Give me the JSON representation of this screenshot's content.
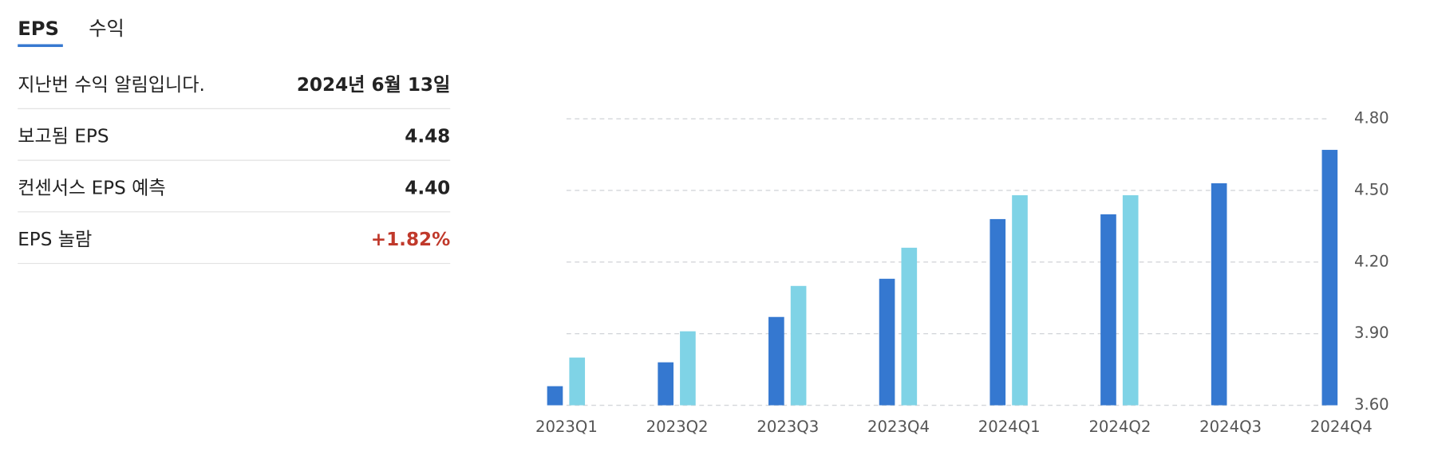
{
  "tabs": [
    "EPS",
    "수익"
  ],
  "info": {
    "rows": [
      {
        "label": "지난번 수익 알림입니다.",
        "value": "2024년 6월 13일"
      },
      {
        "label": "보고됨 EPS",
        "value": "4.48"
      },
      {
        "label": "컨센서스 EPS 예측",
        "value": "4.40"
      },
      {
        "label": "EPS 놀람",
        "value": "+1.82%"
      }
    ]
  },
  "chart_data": {
    "type": "bar",
    "categories": [
      "2023Q1",
      "2023Q2",
      "2023Q3",
      "2023Q4",
      "2024Q1",
      "2024Q2",
      "2024Q3",
      "2024Q4"
    ],
    "series": [
      {
        "color": "#3578d0",
        "values": [
          3.68,
          3.78,
          3.97,
          4.13,
          4.38,
          4.4,
          4.53,
          4.67
        ]
      },
      {
        "color": "#7fd3e6",
        "values": [
          3.8,
          3.91,
          4.1,
          4.26,
          4.48,
          4.48,
          null,
          null
        ]
      }
    ],
    "ylim": [
      3.6,
      4.8
    ],
    "yticks": [
      {
        "value": 3.6,
        "label": "3.60"
      },
      {
        "value": 3.9,
        "label": "3.90"
      },
      {
        "value": 4.2,
        "label": "4.20"
      },
      {
        "value": 4.5,
        "label": "4.50"
      },
      {
        "value": 4.8,
        "label": "4.80"
      }
    ],
    "grid": true
  }
}
